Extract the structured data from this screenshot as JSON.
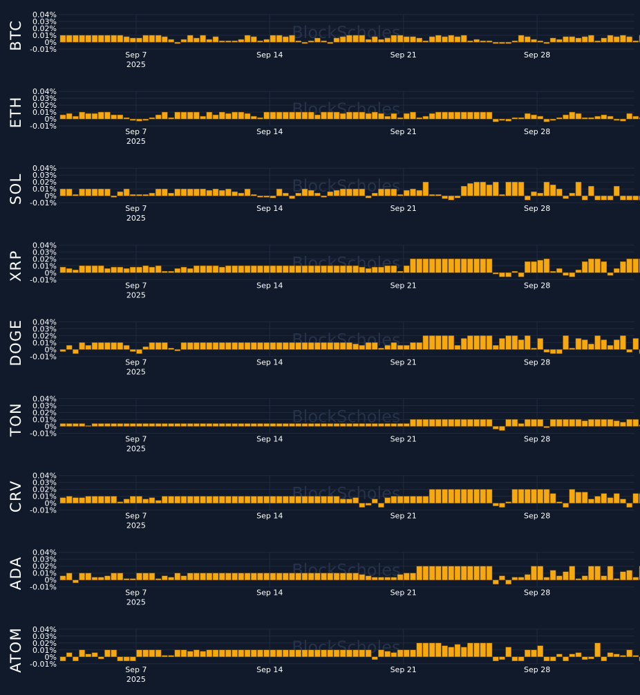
{
  "watermark": "BlockScholes",
  "colors": {
    "background": "#111a2b",
    "bar": "#f5a80f",
    "bar_stroke": "#8a5a00",
    "text": "#ffffff",
    "grid": "#1f2a3d",
    "watermark": "#26324a"
  },
  "chart_data": {
    "type": "bar",
    "x_ticks": [
      {
        "day": 7,
        "label": "Sep 7",
        "sublabel": "2025"
      },
      {
        "day": 14,
        "label": "Sep 14",
        "sublabel": ""
      },
      {
        "day": 21,
        "label": "Sep 21",
        "sublabel": ""
      },
      {
        "day": 28,
        "label": "Sep 28",
        "sublabel": ""
      }
    ],
    "x_range": [
      2.95,
      33.1
    ],
    "bars_per_day": 3,
    "ylim": [
      -0.01,
      0.04
    ],
    "y_ticks": [
      -0.01,
      0,
      0.01,
      0.02,
      0.03,
      0.04
    ],
    "y_tick_labels": [
      "-0.01%",
      "0%",
      "0.01%",
      "0.02%",
      "0.03%",
      "0.04%"
    ],
    "panels": [
      {
        "name": "BTC",
        "values": [
          0.01,
          0.01,
          0.01,
          0.01,
          0.01,
          0.01,
          0.01,
          0.01,
          0.01,
          0.01,
          0.008,
          0.006,
          0.006,
          0.01,
          0.01,
          0.01,
          0.008,
          0.004,
          -0.002,
          0.004,
          0.01,
          0.006,
          0.01,
          0.004,
          0.008,
          0.002,
          0.002,
          0.002,
          0.004,
          0.01,
          0.008,
          0.002,
          0.004,
          0.01,
          0.01,
          0.008,
          0.01,
          0.002,
          -0.002,
          0.002,
          0.006,
          0.002,
          -0.002,
          0.006,
          0.008,
          0.01,
          0.01,
          0.01,
          0.004,
          0.008,
          0.004,
          0.006,
          0.01,
          0.01,
          0.008,
          0.008,
          0.006,
          0.002,
          0.008,
          0.01,
          0.008,
          0.01,
          0.008,
          0.01,
          0.002,
          0.004,
          0.002,
          0.002,
          -0.002,
          -0.002,
          -0.002,
          0.002,
          0.01,
          0.008,
          0.004,
          0.002,
          -0.002,
          0.006,
          0.004,
          0.008,
          0.008,
          0.006,
          0.008,
          0.01,
          0.002,
          0.006,
          0.01,
          0.008,
          0.01,
          0.008,
          0.002,
          0.01,
          0.01
        ]
      },
      {
        "name": "ETH",
        "values": [
          0.006,
          0.008,
          0.004,
          0.01,
          0.008,
          0.008,
          0.01,
          0.01,
          0.006,
          0.006,
          0.002,
          -0.002,
          -0.003,
          -0.002,
          0.002,
          0.006,
          0.01,
          0.002,
          0.01,
          0.01,
          0.01,
          0.01,
          0.004,
          0.01,
          0.006,
          0.01,
          0.008,
          0.01,
          0.01,
          0.008,
          0.004,
          0.002,
          0.01,
          0.01,
          0.01,
          0.01,
          0.01,
          0.01,
          0.01,
          0.01,
          0.006,
          0.01,
          0.01,
          0.01,
          0.008,
          0.01,
          0.01,
          0.01,
          0.008,
          0.01,
          0.008,
          0.004,
          0.008,
          0.002,
          0.008,
          0.01,
          0.002,
          0.004,
          0.008,
          0.01,
          0.01,
          0.01,
          0.01,
          0.01,
          0.01,
          0.01,
          0.01,
          0.01,
          -0.004,
          -0.002,
          -0.003,
          0.002,
          0.002,
          0.008,
          0.006,
          0.004,
          -0.004,
          -0.002,
          0.002,
          0.006,
          0.01,
          0.008,
          0.002,
          0.002,
          0.004,
          0.006,
          0.004,
          -0.002,
          -0.003,
          0.008,
          0.004,
          0.002,
          -0.002,
          0.01,
          0.01
        ]
      },
      {
        "name": "SOL",
        "values": [
          0.01,
          0.01,
          0.002,
          0.01,
          0.01,
          0.01,
          0.01,
          0.01,
          -0.002,
          0.006,
          0.01,
          0.002,
          0.002,
          0.002,
          0.004,
          0.01,
          0.01,
          0.004,
          0.01,
          0.01,
          0.01,
          0.01,
          0.01,
          0.008,
          0.01,
          0.008,
          0.01,
          0.006,
          0.004,
          0.01,
          0.002,
          -0.002,
          -0.002,
          -0.003,
          0.01,
          0.004,
          -0.004,
          0.004,
          0.01,
          0.008,
          0.004,
          -0.002,
          0.006,
          0.008,
          0.01,
          0.01,
          0.01,
          0.01,
          -0.003,
          0.004,
          0.01,
          0.01,
          0.01,
          0.002,
          0.008,
          0.01,
          0.008,
          0.02,
          0.002,
          0.002,
          -0.004,
          -0.006,
          -0.003,
          0.014,
          0.018,
          0.02,
          0.02,
          0.016,
          0.02,
          0.002,
          0.02,
          0.02,
          0.02,
          -0.006,
          0.006,
          0.004,
          0.02,
          0.016,
          0.01,
          -0.004,
          0.004,
          0.02,
          -0.006,
          0.014,
          -0.006,
          -0.006,
          -0.006,
          0.014,
          -0.006,
          -0.006,
          -0.006,
          -0.006,
          -0.006,
          0.02,
          0.014
        ]
      },
      {
        "name": "XRP",
        "values": [
          0.008,
          0.006,
          0.004,
          0.01,
          0.01,
          0.01,
          0.01,
          0.006,
          0.008,
          0.008,
          0.006,
          0.008,
          0.008,
          0.01,
          0.008,
          0.01,
          0.002,
          0.002,
          0.006,
          0.008,
          0.006,
          0.01,
          0.01,
          0.01,
          0.01,
          0.008,
          0.01,
          0.01,
          0.01,
          0.01,
          0.01,
          0.01,
          0.01,
          0.01,
          0.01,
          0.01,
          0.01,
          0.01,
          0.01,
          0.01,
          0.01,
          0.01,
          0.01,
          0.01,
          0.01,
          0.01,
          0.01,
          0.008,
          0.006,
          0.008,
          0.008,
          0.01,
          0.01,
          0.002,
          0.01,
          0.02,
          0.02,
          0.02,
          0.02,
          0.02,
          0.02,
          0.02,
          0.02,
          0.02,
          0.02,
          0.02,
          0.02,
          0.02,
          -0.002,
          -0.006,
          -0.006,
          0.002,
          -0.006,
          0.016,
          0.016,
          0.018,
          0.02,
          0.002,
          0.006,
          -0.004,
          -0.006,
          0.004,
          0.016,
          0.02,
          0.02,
          0.016,
          -0.004,
          0.006,
          0.016,
          0.02,
          0.02,
          0.02,
          0.02,
          0.02,
          0.006,
          0.02,
          0.02
        ]
      },
      {
        "name": "DOGE",
        "values": [
          -0.003,
          0.006,
          -0.006,
          0.01,
          0.006,
          0.01,
          0.01,
          0.01,
          0.01,
          0.01,
          0.006,
          -0.003,
          -0.006,
          0.004,
          0.01,
          0.01,
          0.01,
          0.002,
          -0.002,
          0.01,
          0.01,
          0.01,
          0.01,
          0.01,
          0.01,
          0.01,
          0.01,
          0.01,
          0.01,
          0.01,
          0.01,
          0.01,
          0.01,
          0.01,
          0.01,
          0.01,
          0.01,
          0.01,
          0.01,
          0.01,
          0.01,
          0.01,
          0.01,
          0.01,
          0.01,
          0.01,
          0.008,
          0.006,
          0.01,
          0.01,
          0.002,
          0.006,
          0.01,
          0.006,
          0.006,
          0.01,
          0.01,
          0.02,
          0.02,
          0.02,
          0.02,
          0.02,
          0.006,
          0.016,
          0.02,
          0.02,
          0.02,
          0.02,
          0.006,
          0.016,
          0.02,
          0.02,
          0.014,
          0.02,
          0.002,
          0.016,
          -0.004,
          -0.006,
          -0.006,
          0.02,
          0.002,
          0.016,
          0.014,
          0.008,
          0.02,
          0.014,
          0.006,
          0.014,
          0.02,
          -0.004,
          0.016,
          -0.006,
          0.002,
          0.02,
          0.02
        ]
      },
      {
        "name": "TON",
        "values": [
          0.004,
          0.004,
          0.004,
          0.004,
          0.001,
          0.004,
          0.004,
          0.004,
          0.004,
          0.004,
          0.004,
          0.004,
          0.004,
          0.004,
          0.004,
          0.004,
          0.004,
          0.004,
          0.004,
          0.004,
          0.004,
          0.004,
          0.004,
          0.004,
          0.004,
          0.004,
          0.004,
          0.004,
          0.004,
          0.004,
          0.004,
          0.004,
          0.004,
          0.004,
          0.004,
          0.004,
          0.004,
          0.004,
          0.004,
          0.004,
          0.004,
          0.004,
          0.004,
          0.004,
          0.004,
          0.004,
          0.004,
          0.004,
          0.004,
          0.004,
          0.004,
          0.004,
          0.004,
          0.004,
          0.004,
          0.01,
          0.01,
          0.01,
          0.01,
          0.01,
          0.01,
          0.01,
          0.01,
          0.01,
          0.01,
          0.01,
          0.01,
          0.01,
          -0.004,
          -0.006,
          0.01,
          0.01,
          0.004,
          0.01,
          0.01,
          0.01,
          -0.002,
          0.01,
          0.01,
          0.01,
          0.01,
          0.01,
          0.008,
          0.01,
          0.01,
          0.01,
          0.01,
          0.008,
          0.006,
          0.01,
          0.01,
          0.002,
          0.002,
          0.002,
          0.006,
          -0.006,
          0.01
        ]
      },
      {
        "name": "CRV",
        "values": [
          0.008,
          0.01,
          0.008,
          0.008,
          0.01,
          0.01,
          0.01,
          0.01,
          0.01,
          0.002,
          0.006,
          0.01,
          0.01,
          0.006,
          0.008,
          0.004,
          0.01,
          0.01,
          0.01,
          0.01,
          0.01,
          0.01,
          0.01,
          0.01,
          0.01,
          0.01,
          0.01,
          0.01,
          0.01,
          0.01,
          0.01,
          0.01,
          0.01,
          0.01,
          0.01,
          0.01,
          0.01,
          0.01,
          0.01,
          0.01,
          0.01,
          0.01,
          0.01,
          0.01,
          0.006,
          0.006,
          0.008,
          -0.006,
          -0.003,
          0.006,
          -0.006,
          0.008,
          0.01,
          0.01,
          0.01,
          0.01,
          0.01,
          0.01,
          0.02,
          0.02,
          0.02,
          0.02,
          0.02,
          0.02,
          0.02,
          0.02,
          0.02,
          0.02,
          -0.004,
          -0.006,
          0.002,
          0.02,
          0.02,
          0.02,
          0.02,
          0.02,
          0.02,
          0.014,
          0.002,
          -0.006,
          0.02,
          0.016,
          0.016,
          0.006,
          0.01,
          0.014,
          0.008,
          0.014,
          0.006,
          -0.006,
          0.014,
          0.014,
          0.012,
          0.02,
          0.016
        ]
      },
      {
        "name": "ADA",
        "values": [
          0.006,
          0.01,
          -0.004,
          0.01,
          0.01,
          0.004,
          0.004,
          0.006,
          0.01,
          0.01,
          0.002,
          0.002,
          0.01,
          0.01,
          0.01,
          0.002,
          0.006,
          0.004,
          0.01,
          0.006,
          0.01,
          0.01,
          0.01,
          0.01,
          0.01,
          0.01,
          0.01,
          0.01,
          0.01,
          0.01,
          0.01,
          0.01,
          0.01,
          0.01,
          0.01,
          0.01,
          0.01,
          0.01,
          0.01,
          0.01,
          0.01,
          0.01,
          0.01,
          0.01,
          0.01,
          0.01,
          0.01,
          0.008,
          0.006,
          0.004,
          0.004,
          0.004,
          0.004,
          0.008,
          0.01,
          0.01,
          0.02,
          0.02,
          0.02,
          0.02,
          0.02,
          0.02,
          0.02,
          0.02,
          0.02,
          0.02,
          0.02,
          0.02,
          -0.006,
          0.006,
          -0.006,
          0.004,
          0.004,
          0.008,
          0.02,
          0.02,
          0.004,
          0.014,
          0.006,
          0.012,
          0.02,
          0.002,
          0.006,
          0.02,
          0.02,
          0.006,
          0.02,
          0.002,
          0.012,
          0.014,
          0.004,
          0.02,
          0.014,
          0.01,
          0.02,
          0.01
        ]
      },
      {
        "name": "ATOM",
        "values": [
          -0.006,
          0.006,
          -0.006,
          0.01,
          0.004,
          0.006,
          -0.003,
          0.01,
          0.01,
          -0.006,
          -0.006,
          -0.006,
          0.01,
          0.01,
          0.01,
          0.01,
          0.002,
          0.002,
          0.01,
          0.01,
          0.008,
          0.01,
          0.008,
          0.01,
          0.01,
          0.01,
          0.01,
          0.01,
          0.01,
          0.01,
          0.01,
          0.01,
          0.01,
          0.01,
          0.01,
          0.01,
          0.01,
          0.01,
          0.01,
          0.01,
          0.01,
          0.01,
          0.01,
          0.01,
          0.01,
          0.01,
          0.01,
          0.01,
          0.01,
          -0.004,
          0.01,
          0.008,
          0.006,
          0.01,
          0.01,
          0.01,
          0.02,
          0.02,
          0.02,
          0.02,
          0.016,
          0.014,
          0.018,
          0.014,
          0.02,
          0.02,
          0.02,
          0.02,
          -0.006,
          -0.004,
          0.014,
          -0.006,
          -0.006,
          0.01,
          0.01,
          0.016,
          -0.006,
          -0.006,
          0.004,
          -0.006,
          0.004,
          0.006,
          -0.004,
          -0.003,
          0.02,
          -0.006,
          0.006,
          0.004,
          0.002,
          0.01,
          0.002,
          -0.006,
          -0.006,
          0.02
        ]
      }
    ]
  }
}
